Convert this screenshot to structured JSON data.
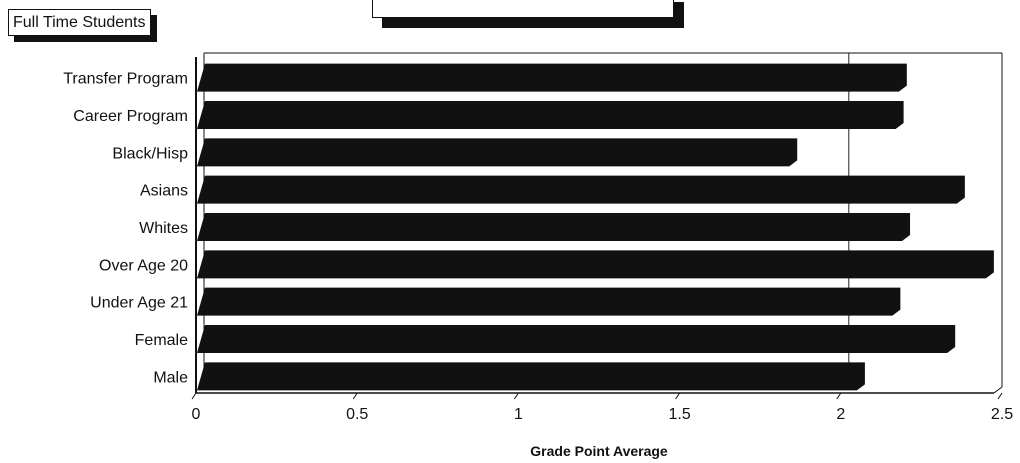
{
  "chart_data": {
    "type": "bar",
    "orientation": "horizontal",
    "title": "",
    "xlabel": "Grade Point Average",
    "ylabel": "",
    "legend": "Full Time Students",
    "categories": [
      "Transfer Program",
      "Career Program",
      "Black/Hisp",
      "Asians",
      "Whites",
      "Over Age 20",
      "Under Age 21",
      "Female",
      "Male"
    ],
    "values": [
      2.18,
      2.17,
      1.84,
      2.36,
      2.19,
      2.45,
      2.16,
      2.33,
      2.05
    ],
    "xlim": [
      0,
      2.5
    ],
    "xticks": [
      "0",
      "0.5",
      "1",
      "1.5",
      "2",
      "2.5"
    ],
    "bar_color": "#111111",
    "grid": false
  }
}
